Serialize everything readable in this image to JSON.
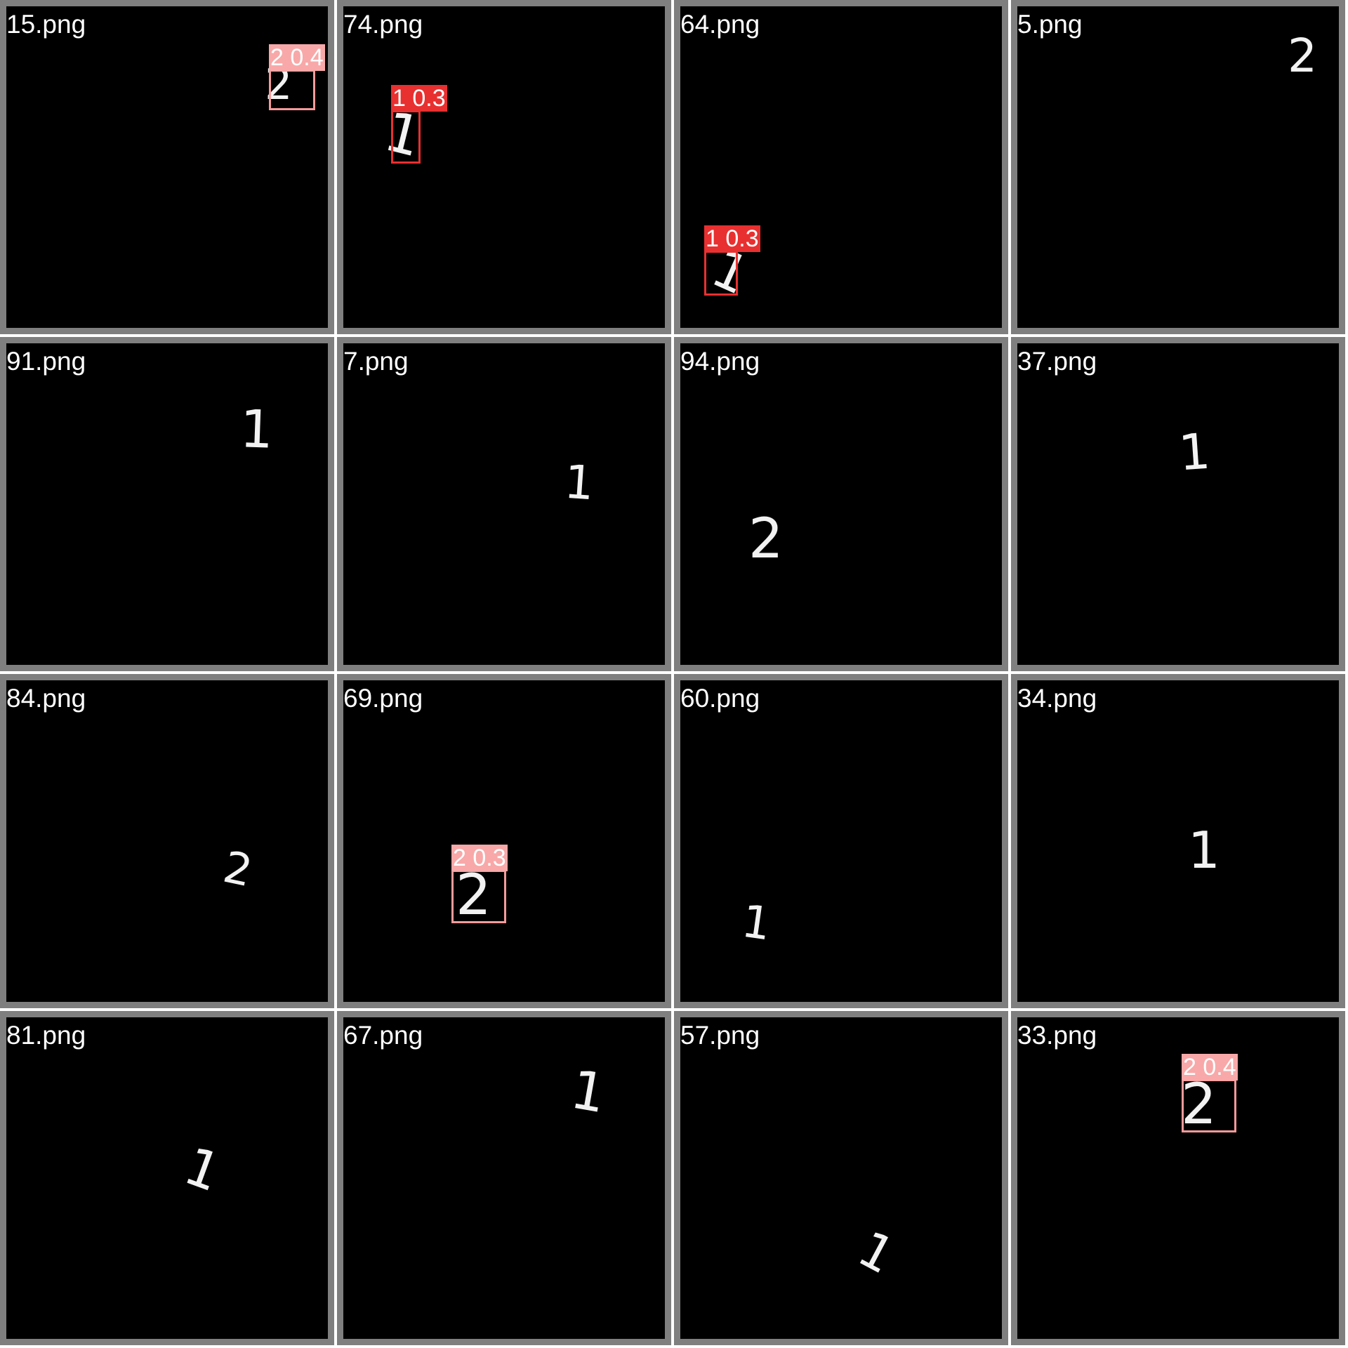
{
  "grid": {
    "tiles": [
      {
        "filename": "15.png",
        "digit": "2",
        "detection": {
          "label": "2 0.4",
          "class": "2"
        }
      },
      {
        "filename": "74.png",
        "digit": "1",
        "detection": {
          "label": "1 0.3",
          "class": "1"
        }
      },
      {
        "filename": "64.png",
        "digit": "1",
        "detection": {
          "label": "1 0.3",
          "class": "1"
        }
      },
      {
        "filename": "5.png",
        "digit": "2"
      },
      {
        "filename": "91.png",
        "digit": "1"
      },
      {
        "filename": "7.png",
        "digit": "1"
      },
      {
        "filename": "94.png",
        "digit": "2"
      },
      {
        "filename": "37.png",
        "digit": "1"
      },
      {
        "filename": "84.png",
        "digit": "2"
      },
      {
        "filename": "69.png",
        "digit": "2",
        "detection": {
          "label": "2 0.3",
          "class": "2"
        }
      },
      {
        "filename": "60.png",
        "digit": "1"
      },
      {
        "filename": "34.png",
        "digit": "1"
      },
      {
        "filename": "81.png",
        "digit": "1"
      },
      {
        "filename": "67.png",
        "digit": "1"
      },
      {
        "filename": "57.png",
        "digit": "1"
      },
      {
        "filename": "33.png",
        "digit": "2",
        "detection": {
          "label": "2 0.4",
          "class": "2"
        }
      }
    ]
  },
  "class_colors": {
    "1": {
      "box": "#e83030",
      "label_bg": "#e83030"
    },
    "2": {
      "box": "#f59a9a",
      "label_bg": "#f8a8a8"
    }
  },
  "tile_background": "#000000",
  "tile_border": "#7f7f7f"
}
